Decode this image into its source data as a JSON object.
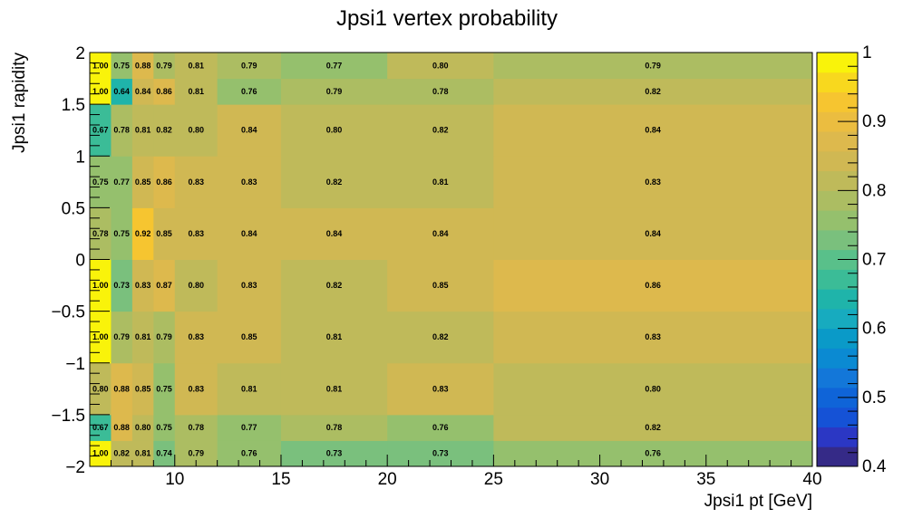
{
  "chart_data": {
    "type": "heatmap",
    "title": "Jpsi1 vertex probability",
    "xlabel": "Jpsi1 pt [GeV]",
    "ylabel": "Jpsi1 rapidity",
    "xlim": [
      6,
      40
    ],
    "ylim": [
      -2,
      2
    ],
    "x_edges": [
      6,
      7,
      8,
      9,
      10,
      12,
      15,
      20,
      25,
      40
    ],
    "y_edges": [
      -2,
      -1.75,
      -1.5,
      -1,
      -0.5,
      0,
      0.5,
      1,
      1.5,
      1.75,
      2
    ],
    "x_tick_labels": [
      "10",
      "15",
      "20",
      "25",
      "30",
      "35",
      "40"
    ],
    "y_tick_labels": [
      "−2",
      "−1.5",
      "−1",
      "−0.5",
      "0",
      "0.5",
      "1",
      "1.5",
      "2"
    ],
    "z_range": [
      0.4,
      1.0
    ],
    "colorbar_tick_labels": [
      "0.4",
      "0.5",
      "0.6",
      "0.7",
      "0.8",
      "0.9",
      "1"
    ],
    "colormap": [
      "#352a87",
      "#2b37c4",
      "#1552d6",
      "#0f64d8",
      "#1377d9",
      "#0b8ad2",
      "#0a9ac8",
      "#17abbf",
      "#1fb4aa",
      "#3bbc97",
      "#59c08a",
      "#7ac07d",
      "#95c06d",
      "#acbd62",
      "#bfba5a",
      "#d0b853",
      "#ddb94d",
      "#ebbd40",
      "#f6c530",
      "#f8d81e",
      "#f9f30a"
    ],
    "values": [
      [
        1.0,
        0.82,
        0.81,
        0.74,
        0.79,
        0.76,
        0.73,
        0.73,
        0.76
      ],
      [
        0.67,
        0.88,
        0.8,
        0.75,
        0.78,
        0.77,
        0.78,
        0.76,
        0.82
      ],
      [
        0.8,
        0.88,
        0.85,
        0.75,
        0.83,
        0.81,
        0.81,
        0.83,
        0.8
      ],
      [
        1.0,
        0.79,
        0.81,
        0.79,
        0.83,
        0.85,
        0.81,
        0.82,
        0.83
      ],
      [
        1.0,
        0.73,
        0.83,
        0.87,
        0.8,
        0.83,
        0.82,
        0.85,
        0.86
      ],
      [
        0.78,
        0.75,
        0.92,
        0.85,
        0.83,
        0.84,
        0.84,
        0.84,
        0.84
      ],
      [
        0.75,
        0.77,
        0.85,
        0.86,
        0.83,
        0.83,
        0.82,
        0.81,
        0.83
      ],
      [
        0.67,
        0.78,
        0.81,
        0.82,
        0.8,
        0.84,
        0.8,
        0.82,
        0.84
      ],
      [
        1.0,
        0.64,
        0.84,
        0.86,
        0.81,
        0.76,
        0.79,
        0.78,
        0.82
      ],
      [
        1.0,
        0.75,
        0.88,
        0.79,
        0.81,
        0.79,
        0.77,
        0.8,
        0.79
      ]
    ]
  }
}
